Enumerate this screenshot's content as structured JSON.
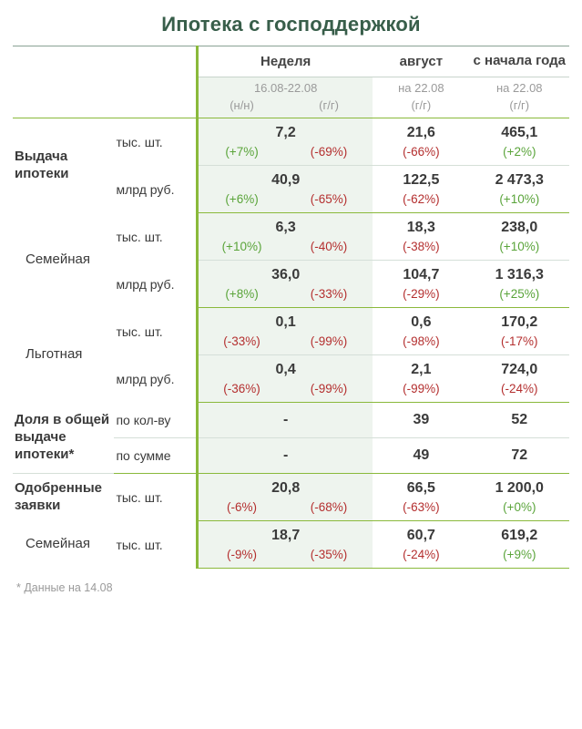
{
  "title": "Ипотека с господдержкой",
  "footnote": "* Данные на 14.08",
  "headers": {
    "week": "Неделя",
    "august": "август",
    "ytd": "с начала года",
    "week_range": "16.08-22.08",
    "aug_date": "на 22.08",
    "ytd_date": "на 22.08",
    "nn": "(н/н)",
    "gg": "(г/г)"
  },
  "colors": {
    "title": "#385e4a",
    "accent": "#8ab93b",
    "band": "#eef4ee",
    "muted": "#9a9a9a",
    "pos": "#5aa43a",
    "neg": "#b42f2f",
    "text": "#3a3a3a",
    "border_soft": "#c8d4cc"
  },
  "rows": {
    "issuance": {
      "label": "Выдача ипотеки",
      "r1": {
        "unit": "тыс. шт.",
        "week": "7,2",
        "w1": "(+7%)",
        "w1c": "pos",
        "w2": "(-69%)",
        "w2c": "neg",
        "aug": "21,6",
        "augp": "(-66%)",
        "augc": "neg",
        "ytd": "465,1",
        "ytdp": "(+2%)",
        "ytdc": "pos"
      },
      "r2": {
        "unit": "млрд руб.",
        "week": "40,9",
        "w1": "(+6%)",
        "w1c": "pos",
        "w2": "(-65%)",
        "w2c": "neg",
        "aug": "122,5",
        "augp": "(-62%)",
        "augc": "neg",
        "ytd": "2 473,3",
        "ytdp": "(+10%)",
        "ytdc": "pos"
      }
    },
    "family": {
      "label": "Семейная",
      "r1": {
        "unit": "тыс. шт.",
        "week": "6,3",
        "w1": "(+10%)",
        "w1c": "pos",
        "w2": "(-40%)",
        "w2c": "neg",
        "aug": "18,3",
        "augp": "(-38%)",
        "augc": "neg",
        "ytd": "238,0",
        "ytdp": "(+10%)",
        "ytdc": "pos"
      },
      "r2": {
        "unit": "млрд руб.",
        "week": "36,0",
        "w1": "(+8%)",
        "w1c": "pos",
        "w2": "(-33%)",
        "w2c": "neg",
        "aug": "104,7",
        "augp": "(-29%)",
        "augc": "neg",
        "ytd": "1 316,3",
        "ytdp": "(+25%)",
        "ytdc": "pos"
      }
    },
    "subsidized": {
      "label": "Льготная",
      "r1": {
        "unit": "тыс. шт.",
        "week": "0,1",
        "w1": "(-33%)",
        "w1c": "neg",
        "w2": "(-99%)",
        "w2c": "neg",
        "aug": "0,6",
        "augp": "(-98%)",
        "augc": "neg",
        "ytd": "170,2",
        "ytdp": "(-17%)",
        "ytdc": "neg"
      },
      "r2": {
        "unit": "млрд руб.",
        "week": "0,4",
        "w1": "(-36%)",
        "w1c": "neg",
        "w2": "(-99%)",
        "w2c": "neg",
        "aug": "2,1",
        "augp": "(-99%)",
        "augc": "neg",
        "ytd": "724,0",
        "ytdp": "(-24%)",
        "ytdc": "neg"
      }
    },
    "share": {
      "label": "Доля в общей выдаче ипотеки*",
      "r1": {
        "unit": "по кол-ву",
        "week": "-",
        "aug": "39",
        "ytd": "52"
      },
      "r2": {
        "unit": "по сумме",
        "week": "-",
        "aug": "49",
        "ytd": "72"
      }
    },
    "approved": {
      "label": "Одобренные заявки",
      "r1": {
        "unit": "тыс. шт.",
        "week": "20,8",
        "w1": "(-6%)",
        "w1c": "neg",
        "w2": "(-68%)",
        "w2c": "neg",
        "aug": "66,5",
        "augp": "(-63%)",
        "augc": "neg",
        "ytd": "1 200,0",
        "ytdp": "(+0%)",
        "ytdc": "pos"
      }
    },
    "approved_family": {
      "label": "Семейная",
      "r1": {
        "unit": "тыс. шт.",
        "week": "18,7",
        "w1": "(-9%)",
        "w1c": "neg",
        "w2": "(-35%)",
        "w2c": "neg",
        "aug": "60,7",
        "augp": "(-24%)",
        "augc": "neg",
        "ytd": "619,2",
        "ytdp": "(+9%)",
        "ytdc": "pos"
      }
    }
  }
}
